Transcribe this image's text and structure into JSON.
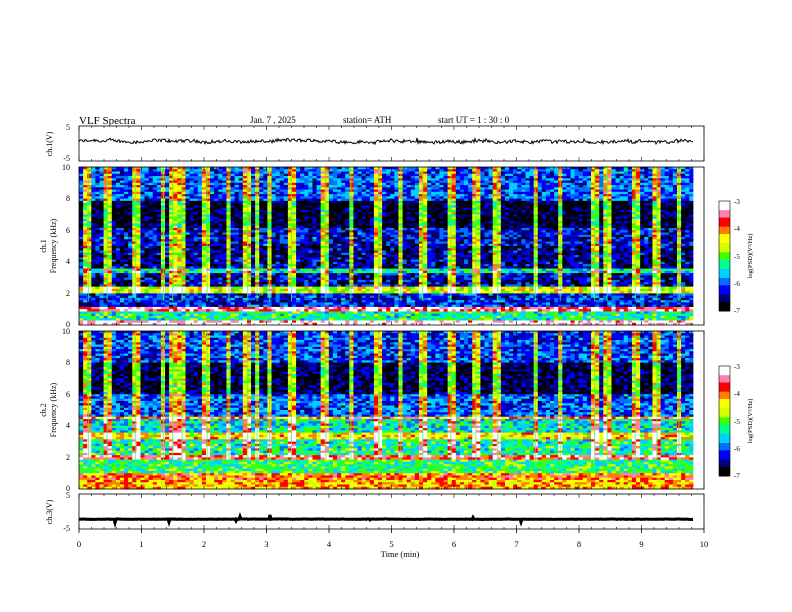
{
  "header": {
    "title": "VLF  Spectra",
    "date": "Jan.  7  , 2025",
    "station": "station= ATH",
    "start_ut": "start  UT  =   1  : 30 : 0"
  },
  "chart_data": [
    {
      "type": "line",
      "name": "ch1-waveform",
      "ylabel": "ch.1(V)",
      "ylim": [
        -5,
        5
      ],
      "y_ticks": [
        "5",
        "-5"
      ],
      "x_range_min": [
        0,
        9.83
      ],
      "approx_level": 0.6,
      "color": "#000000"
    },
    {
      "type": "heatmap",
      "name": "ch1-spectrogram",
      "ylabel_top": "ch.1",
      "ylabel": "Frequency  (kHz)",
      "ylim_khz": [
        0,
        10
      ],
      "y_ticks": [
        "0",
        "2",
        "4",
        "6",
        "8",
        "10"
      ],
      "x_range_min": [
        0,
        9.83
      ],
      "colorbar": {
        "label": "log(PSD)(V²/Hz)",
        "range": [
          -7,
          -3
        ],
        "ticks": [
          "-3",
          "-4",
          "-5",
          "-6",
          "-7"
        ]
      },
      "band_levels_log_psd": [
        {
          "f_khz": [
            0.0,
            0.35
          ],
          "level": -3.1
        },
        {
          "f_khz": [
            0.35,
            0.8
          ],
          "level": -5.3
        },
        {
          "f_khz": [
            0.8,
            1.1
          ],
          "level": -3.4
        },
        {
          "f_khz": [
            1.1,
            2.0
          ],
          "level": -6.2
        },
        {
          "f_khz": [
            2.0,
            2.4
          ],
          "level": -4.6
        },
        {
          "f_khz": [
            2.4,
            3.3
          ],
          "level": -6.4
        },
        {
          "f_khz": [
            3.3,
            3.6
          ],
          "level": -5.4
        },
        {
          "f_khz": [
            3.6,
            5.0
          ],
          "level": -6.5
        },
        {
          "f_khz": [
            5.0,
            6.2
          ],
          "level": -6.3
        },
        {
          "f_khz": [
            6.2,
            7.8
          ],
          "level": -6.8
        },
        {
          "f_khz": [
            7.8,
            10.0
          ],
          "level": -6.0
        }
      ],
      "sferic_times_min": [
        0.15,
        0.45,
        0.9,
        1.35,
        1.5,
        1.65,
        2.05,
        2.4,
        2.7,
        2.85,
        3.05,
        3.4,
        3.95,
        4.35,
        4.8,
        5.15,
        5.5,
        5.95,
        6.35,
        6.7,
        7.3,
        7.7,
        8.25,
        8.45,
        8.9,
        9.25,
        9.6
      ]
    },
    {
      "type": "heatmap",
      "name": "ch2-spectrogram",
      "ylabel_top": "ch.2",
      "ylabel": "Frequency  (kHz)",
      "ylim_khz": [
        0,
        10
      ],
      "y_ticks": [
        "0",
        "2",
        "4",
        "6",
        "8",
        "10"
      ],
      "x_range_min": [
        0,
        9.83
      ],
      "colorbar": {
        "label": "log(PSD)(V²/Hz)",
        "range": [
          -7,
          -3
        ],
        "ticks": [
          "-3",
          "-4",
          "-5",
          "-6",
          "-7"
        ]
      },
      "band_levels_log_psd": [
        {
          "f_khz": [
            0.0,
            0.6
          ],
          "level": -4.2
        },
        {
          "f_khz": [
            0.6,
            1.0
          ],
          "level": -4.0
        },
        {
          "f_khz": [
            1.0,
            1.8
          ],
          "level": -5.2
        },
        {
          "f_khz": [
            1.8,
            2.2
          ],
          "level": -3.6
        },
        {
          "f_khz": [
            2.2,
            3.2
          ],
          "level": -5.3
        },
        {
          "f_khz": [
            3.2,
            3.6
          ],
          "level": -4.4
        },
        {
          "f_khz": [
            3.6,
            4.4
          ],
          "level": -5.5
        },
        {
          "f_khz": [
            4.4,
            4.6
          ],
          "level": -4.0
        },
        {
          "f_khz": [
            4.6,
            6.0
          ],
          "level": -6.0
        },
        {
          "f_khz": [
            6.0,
            8.0
          ],
          "level": -6.7
        },
        {
          "f_khz": [
            8.0,
            10.0
          ],
          "level": -6.1
        }
      ],
      "sferic_times_min": [
        0.15,
        0.45,
        0.9,
        1.35,
        1.5,
        1.65,
        2.05,
        2.4,
        2.7,
        2.85,
        3.05,
        3.4,
        3.95,
        4.35,
        4.8,
        5.15,
        5.5,
        5.95,
        6.35,
        6.7,
        7.3,
        7.7,
        8.25,
        8.45,
        8.9,
        9.25,
        9.6
      ]
    },
    {
      "type": "line",
      "name": "ch3-waveform",
      "ylabel": "ch.3(V)",
      "ylim": [
        -5,
        5
      ],
      "y_ticks": [
        "5",
        "-5"
      ],
      "x_range_min": [
        0,
        9.83
      ],
      "approx_level": -2.2,
      "color": "#000000"
    }
  ],
  "x_axis": {
    "label": "Time  (min)",
    "range": [
      0,
      10
    ],
    "ticks": [
      "0",
      "1",
      "2",
      "3",
      "4",
      "5",
      "6",
      "7",
      "8",
      "9",
      "10"
    ]
  },
  "colormap": [
    "#000000",
    "#00007a",
    "#0000ff",
    "#0070ff",
    "#00d0ff",
    "#00ff90",
    "#40ff00",
    "#d0ff00",
    "#ffff00",
    "#ff8000",
    "#ff0000",
    "#ff80b0",
    "#ffffff"
  ]
}
